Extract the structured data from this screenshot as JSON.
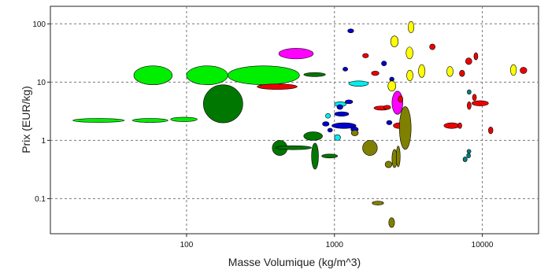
{
  "chart_data": {
    "type": "scatter",
    "xlabel": "Masse Volumique (kg/m^3)",
    "ylabel": "Prix (EUR/kg)",
    "xscale": "log",
    "yscale": "log",
    "xlim": [
      12,
      24000
    ],
    "ylim": [
      0.025,
      200
    ],
    "grid": true,
    "legend": "none",
    "xticks": [
      {
        "value": 100,
        "label": "100"
      },
      {
        "value": 1000,
        "label": "1000"
      },
      {
        "value": 10000,
        "label": "10000"
      }
    ],
    "yticks": [
      {
        "value": 100,
        "label": "100"
      },
      {
        "value": 10,
        "label": "10"
      },
      {
        "value": 1,
        "label": "1"
      },
      {
        "value": 0.1,
        "label": "0.1"
      }
    ],
    "colors": {
      "green": "#00ee00",
      "darkgreen": "#007700",
      "magenta": "#ff00ff",
      "red": "#ee0000",
      "blue": "#0000cc",
      "cyan": "#00eeee",
      "olive": "#808000",
      "teal": "#008080",
      "yellow": "#ffff00"
    },
    "bubbles": [
      {
        "group": "green",
        "x": [
          17,
          38
        ],
        "y": [
          2.1,
          2.3
        ]
      },
      {
        "group": "green",
        "x": [
          43,
          75
        ],
        "y": [
          2.1,
          2.3
        ]
      },
      {
        "group": "green",
        "x": [
          78,
          118
        ],
        "y": [
          2.1,
          2.5
        ]
      },
      {
        "group": "green",
        "x": [
          44,
          80
        ],
        "y": [
          9,
          19
        ]
      },
      {
        "group": "green",
        "x": [
          100,
          190
        ],
        "y": [
          9,
          19
        ]
      },
      {
        "group": "green",
        "x": [
          190,
          580
        ],
        "y": [
          9,
          19
        ]
      },
      {
        "group": "darkgreen",
        "x": [
          130,
          240
        ],
        "y": [
          2,
          9
        ]
      },
      {
        "group": "darkgreen",
        "x": [
          620,
          870
        ],
        "y": [
          12.5,
          14.5
        ]
      },
      {
        "group": "darkgreen",
        "x": [
          380,
          480
        ],
        "y": [
          0.55,
          1.0
        ]
      },
      {
        "group": "darkgreen",
        "x": [
          400,
          700
        ],
        "y": [
          0.7,
          0.8
        ]
      },
      {
        "group": "darkgreen",
        "x": [
          620,
          830
        ],
        "y": [
          1.0,
          1.4
        ]
      },
      {
        "group": "darkgreen",
        "x": [
          700,
          780
        ],
        "y": [
          0.32,
          0.9
        ]
      },
      {
        "group": "darkgreen",
        "x": [
          820,
          1050
        ],
        "y": [
          0.5,
          0.58
        ]
      },
      {
        "group": "magenta",
        "x": [
          420,
          720
        ],
        "y": [
          25,
          38
        ]
      },
      {
        "group": "magenta",
        "x": [
          2450,
          2900
        ],
        "y": [
          2.8,
          7
        ]
      },
      {
        "group": "red",
        "x": [
          300,
          560
        ],
        "y": [
          7.5,
          9.3
        ]
      },
      {
        "group": "red",
        "x": [
          1850,
          2350
        ],
        "y": [
          3.3,
          3.9
        ]
      },
      {
        "group": "red",
        "x": [
          2500,
          3000
        ],
        "y": [
          1.6,
          2.0
        ]
      },
      {
        "group": "red",
        "x": [
          2700,
          2900
        ],
        "y": [
          4.5,
          5.8
        ]
      },
      {
        "group": "red",
        "x": [
          5500,
          7000
        ],
        "y": [
          1.6,
          2.0
        ]
      },
      {
        "group": "red",
        "x": [
          8500,
          11000
        ],
        "y": [
          3.9,
          4.8
        ]
      },
      {
        "group": "red",
        "x": [
          4400,
          4800
        ],
        "y": [
          36,
          45
        ]
      },
      {
        "group": "red",
        "x": [
          7700,
          8500
        ],
        "y": [
          20,
          26
        ]
      },
      {
        "group": "red",
        "x": [
          8800,
          9300
        ],
        "y": [
          24,
          32
        ]
      },
      {
        "group": "red",
        "x": [
          18000,
          20000
        ],
        "y": [
          14,
          18
        ]
      },
      {
        "group": "red",
        "x": [
          7000,
          7600
        ],
        "y": [
          12.5,
          16
        ]
      },
      {
        "group": "red",
        "x": [
          8600,
          9100
        ],
        "y": [
          4.8,
          6.2
        ]
      },
      {
        "group": "red",
        "x": [
          7900,
          8400
        ],
        "y": [
          3.4,
          4.6
        ]
      },
      {
        "group": "red",
        "x": [
          11000,
          11800
        ],
        "y": [
          1.3,
          1.7
        ]
      },
      {
        "group": "red",
        "x": [
          6900,
          7200
        ],
        "y": [
          1.6,
          2.0
        ]
      },
      {
        "group": "red",
        "x": [
          1550,
          1700
        ],
        "y": [
          26,
          31
        ]
      },
      {
        "group": "red",
        "x": [
          1780,
          2000
        ],
        "y": [
          13,
          15.5
        ]
      },
      {
        "group": "red",
        "x": [
          2150,
          2400
        ],
        "y": [
          3.4,
          4.0
        ]
      },
      {
        "group": "cyan",
        "x": [
          1250,
          1700
        ],
        "y": [
          8.5,
          10.5
        ]
      },
      {
        "group": "cyan",
        "x": [
          1000,
          1200
        ],
        "y": [
          3.8,
          4.6
        ]
      },
      {
        "group": "cyan",
        "x": [
          1000,
          1100
        ],
        "y": [
          1.0,
          1.25
        ]
      },
      {
        "group": "cyan",
        "x": [
          870,
          940
        ],
        "y": [
          2.4,
          2.9
        ]
      },
      {
        "group": "blue",
        "x": [
          1000,
          1250
        ],
        "y": [
          2.6,
          3.1
        ]
      },
      {
        "group": "blue",
        "x": [
          960,
          1400
        ],
        "y": [
          1.6,
          2.0
        ]
      },
      {
        "group": "blue",
        "x": [
          1230,
          1350
        ],
        "y": [
          70,
          82
        ]
      },
      {
        "group": "blue",
        "x": [
          1290,
          1450
        ],
        "y": [
          1.4,
          1.7
        ]
      },
      {
        "group": "blue",
        "x": [
          1040,
          1140
        ],
        "y": [
          3.4,
          4.1
        ]
      },
      {
        "group": "blue",
        "x": [
          1180,
          1330
        ],
        "y": [
          4.3,
          4.9
        ]
      },
      {
        "group": "blue",
        "x": [
          1140,
          1230
        ],
        "y": [
          15.5,
          18
        ]
      },
      {
        "group": "blue",
        "x": [
          2080,
          2250
        ],
        "y": [
          19,
          23
        ]
      },
      {
        "group": "blue",
        "x": [
          2360,
          2530
        ],
        "y": [
          10.3,
          12.2
        ]
      },
      {
        "group": "blue",
        "x": [
          2250,
          2450
        ],
        "y": [
          1.85,
          2.2
        ]
      },
      {
        "group": "blue",
        "x": [
          830,
          920
        ],
        "y": [
          1.75,
          2.1
        ]
      },
      {
        "group": "blue",
        "x": [
          900,
          970
        ],
        "y": [
          1.4,
          1.6
        ]
      },
      {
        "group": "olive",
        "x": [
          1550,
          1950
        ],
        "y": [
          0.55,
          1.0
        ]
      },
      {
        "group": "olive",
        "x": [
          1300,
          1450
        ],
        "y": [
          1.2,
          1.5
        ]
      },
      {
        "group": "olive",
        "x": [
          1800,
          2150
        ],
        "y": [
          0.078,
          0.09
        ]
      },
      {
        "group": "olive",
        "x": [
          2330,
          2550
        ],
        "y": [
          0.032,
          0.047
        ]
      },
      {
        "group": "olive",
        "x": [
          2200,
          2450
        ],
        "y": [
          0.34,
          0.44
        ]
      },
      {
        "group": "olive",
        "x": [
          2450,
          2650
        ],
        "y": [
          0.34,
          0.7
        ]
      },
      {
        "group": "olive",
        "x": [
          2620,
          2780
        ],
        "y": [
          0.35,
          0.8
        ]
      },
      {
        "group": "olive",
        "x": [
          2750,
          3300
        ],
        "y": [
          0.7,
          3.8
        ]
      },
      {
        "group": "teal",
        "x": [
          7400,
          7900
        ],
        "y": [
          0.43,
          0.52
        ]
      },
      {
        "group": "teal",
        "x": [
          7850,
          8300
        ],
        "y": [
          0.5,
          0.6
        ]
      },
      {
        "group": "teal",
        "x": [
          7900,
          8350
        ],
        "y": [
          0.6,
          0.7
        ]
      },
      {
        "group": "teal",
        "x": [
          7900,
          8400
        ],
        "y": [
          6.2,
          7.4
        ]
      },
      {
        "group": "yellow",
        "x": [
          3150,
          3450
        ],
        "y": [
          70,
          110
        ]
      },
      {
        "group": "yellow",
        "x": [
          2400,
          2700
        ],
        "y": [
          40,
          62
        ]
      },
      {
        "group": "yellow",
        "x": [
          3050,
          3400
        ],
        "y": [
          25,
          40
        ]
      },
      {
        "group": "yellow",
        "x": [
          3080,
          3400
        ],
        "y": [
          10.5,
          16
        ]
      },
      {
        "group": "yellow",
        "x": [
          3700,
          4100
        ],
        "y": [
          12,
          20
        ]
      },
      {
        "group": "yellow",
        "x": [
          5750,
          6350
        ],
        "y": [
          12.5,
          18.5
        ]
      },
      {
        "group": "yellow",
        "x": [
          15500,
          17000
        ],
        "y": [
          13,
          20
        ]
      },
      {
        "group": "yellow",
        "x": [
          2300,
          2600
        ],
        "y": [
          7,
          10.5
        ]
      }
    ]
  }
}
